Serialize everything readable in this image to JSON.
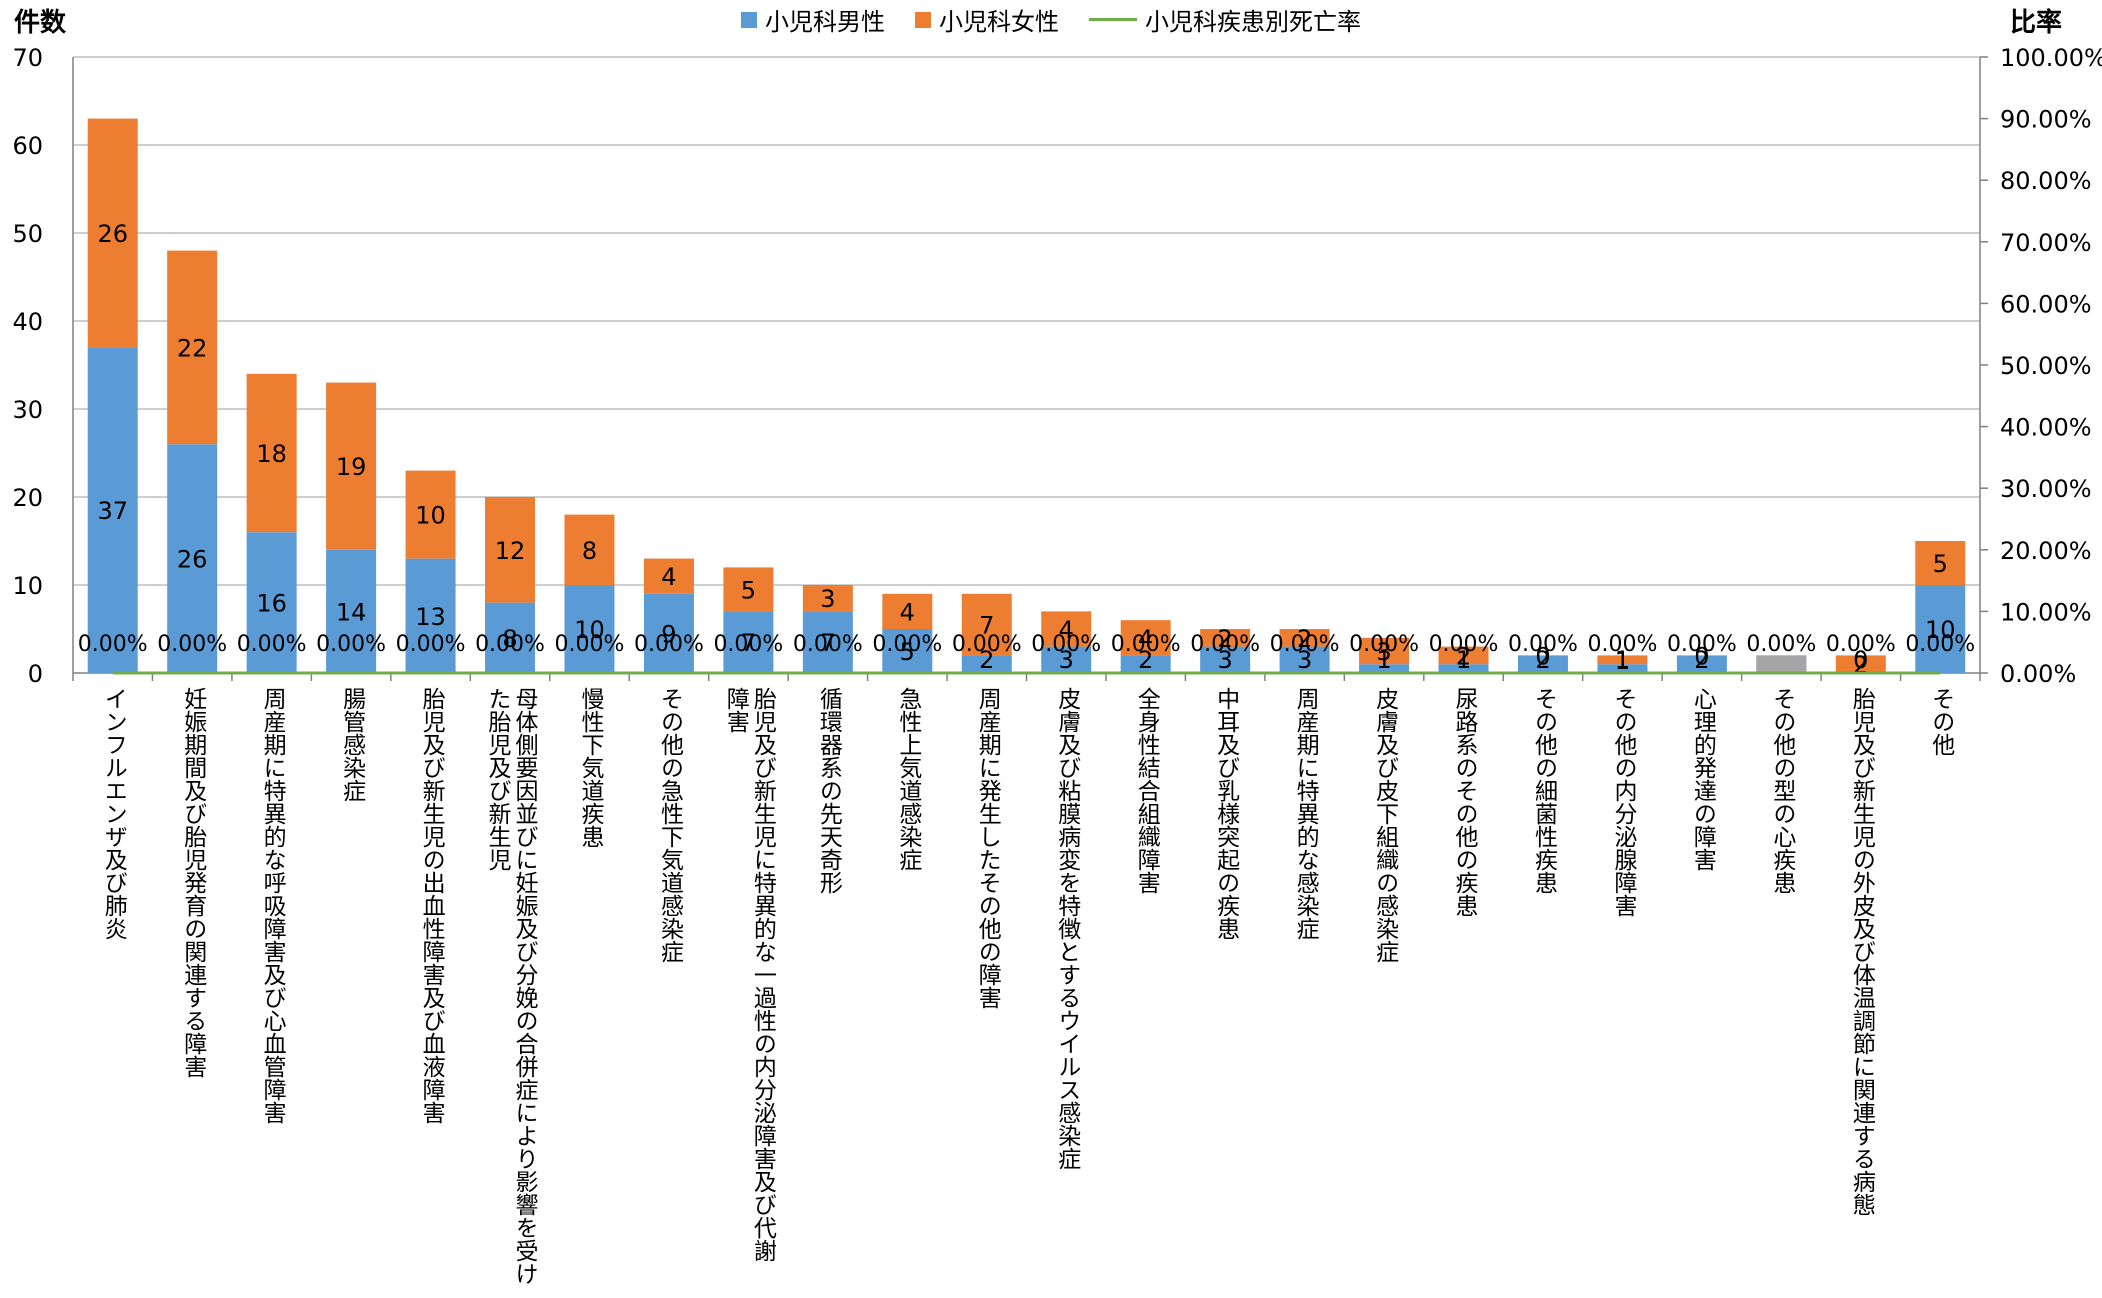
{
  "chart_data": {
    "type": "bar",
    "stacked": true,
    "y_left_title": "件数",
    "y_right_title": "比率",
    "y_left_range": [
      0,
      70
    ],
    "y_left_ticks": [
      "0",
      "10",
      "20",
      "30",
      "40",
      "50",
      "60",
      "70"
    ],
    "y_right_range": [
      0,
      100
    ],
    "y_right_ticks": [
      "0.00%",
      "10.00%",
      "20.00%",
      "30.00%",
      "40.00%",
      "50.00%",
      "60.00%",
      "70.00%",
      "80.00%",
      "90.00%",
      "100.00%"
    ],
    "grid": true,
    "legend_position": "top",
    "legend": [
      {
        "name": "小児科男性",
        "kind": "bar",
        "color": "#5B9BD5"
      },
      {
        "name": "小児科女性",
        "kind": "bar",
        "color": "#ED7D31"
      },
      {
        "name": "小児科疾患別死亡率",
        "kind": "line",
        "color": "#70AD47"
      }
    ],
    "categories": [
      "インフルエンザ及び肺炎",
      "妊娠期間及び胎児発育の関連する障害",
      "周産期に特異的な呼吸障害及び心血管障害",
      "腸管感染症",
      "胎児及び新生児の出血性障害及び血液障害",
      "母体側要因並びに妊娠及び分娩の合併症により影響を受け\nた胎児及び新生児",
      "慢性下気道疾患",
      "その他の急性下気道感染症",
      "胎児及び新生児に特異的な一過性の内分泌障害及び代謝\n障害",
      "循環器系の先天奇形",
      "急性上気道感染症",
      "周産期に発生したその他の障害",
      "皮膚及び粘膜病変を特徴とするウイルス感染症",
      "全身性結合組織障害",
      "中耳及び乳様突起の疾患",
      "周産期に特異的な感染症",
      "皮膚及び皮下組織の感染症",
      "尿路系のその他の疾患",
      "その他の細菌性疾患",
      "その他の内分泌腺障害",
      "心理的発達の障害",
      "その他の型の心疾患",
      "胎児及び新生児の外皮及び体温調節に関連する病態",
      "その他"
    ],
    "series": [
      {
        "name": "小児科男性",
        "type": "bar",
        "color": "#5B9BD5",
        "values": [
          37,
          26,
          16,
          14,
          13,
          8,
          10,
          9,
          7,
          7,
          5,
          2,
          3,
          2,
          3,
          3,
          1,
          1,
          2,
          1,
          2,
          2,
          0,
          10
        ],
        "labels": [
          "37",
          "26",
          "16",
          "14",
          "13",
          "8",
          "10",
          "9",
          "7",
          "7",
          "5",
          "2",
          "3",
          "2",
          "3",
          "3",
          "1",
          "1",
          "2",
          "1",
          "2",
          "",
          "0",
          "10"
        ]
      },
      {
        "name": "小児科女性",
        "type": "bar",
        "color": "#ED7D31",
        "values": [
          26,
          22,
          18,
          19,
          10,
          12,
          8,
          4,
          5,
          3,
          4,
          7,
          4,
          4,
          2,
          2,
          3,
          2,
          0,
          1,
          0,
          0,
          2,
          5
        ],
        "labels": [
          "26",
          "22",
          "18",
          "19",
          "10",
          "12",
          "8",
          "4",
          "5",
          "3",
          "4",
          "7",
          "4",
          "4",
          "2",
          "2",
          "3",
          "2",
          "0",
          "1",
          "0",
          "",
          "2",
          "5"
        ]
      },
      {
        "name": "小児科疾患別死亡率",
        "type": "line",
        "axis": "right",
        "color": "#70AD47",
        "values": [
          0,
          0,
          0,
          0,
          0,
          0,
          0,
          0,
          0,
          0,
          0,
          0,
          0,
          0,
          0,
          0,
          0,
          0,
          0,
          0,
          0,
          0,
          0,
          0
        ],
        "labels": [
          "0.00%",
          "0.00%",
          "0.00%",
          "0.00%",
          "0.00%",
          "0.00%",
          "0.00%",
          "0.00%",
          "0.00%",
          "0.00%",
          "0.00%",
          "0.00%",
          "0.00%",
          "0.00%",
          "0.00%",
          "0.00%",
          "0.00%",
          "0.00%",
          "0.00%",
          "0.00%",
          "0.00%",
          "0.00%",
          "0.00%",
          "0.00%"
        ]
      }
    ],
    "other_bars": [
      {
        "category_index": 21,
        "value": 2,
        "color": "#A5A5A5"
      }
    ]
  }
}
